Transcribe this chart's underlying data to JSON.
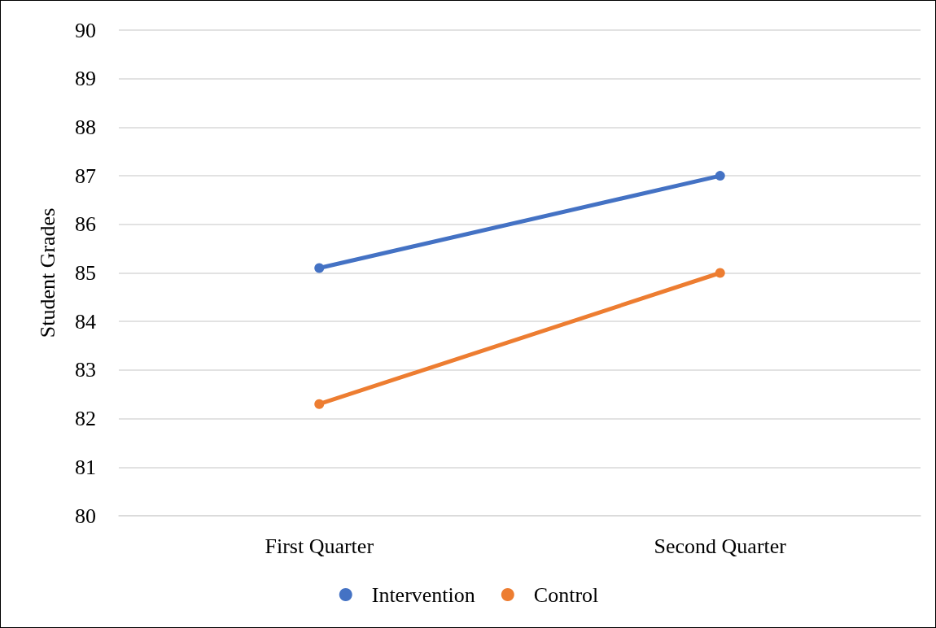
{
  "chart_data": {
    "type": "line",
    "ylabel": "Student Grades",
    "categories": [
      "First Quarter",
      "Second Quarter"
    ],
    "series": [
      {
        "name": "Intervention",
        "color": "#4472c4",
        "values": [
          85.1,
          87.0
        ]
      },
      {
        "name": "Control",
        "color": "#ed7d31",
        "values": [
          82.3,
          85.0
        ]
      }
    ],
    "ylim": [
      80,
      90
    ],
    "yticks": [
      80,
      81,
      82,
      83,
      84,
      85,
      86,
      87,
      88,
      89,
      90
    ],
    "grid": "y",
    "legend": "bottom",
    "marker": "circle",
    "line_style": "solid"
  }
}
